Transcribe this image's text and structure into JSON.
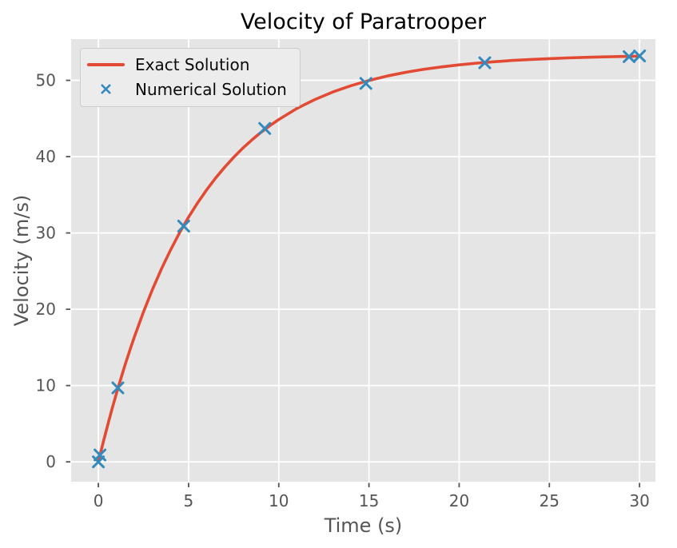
{
  "chart_data": {
    "type": "line+scatter",
    "title": "Velocity of Paratrooper",
    "xlabel": "Time (s)",
    "ylabel": "Velocity (m/s)",
    "xlim": [
      -1.51,
      30.88
    ],
    "ylim": [
      -2.6,
      55.4
    ],
    "xticks": [
      0,
      5,
      10,
      15,
      20,
      25,
      30
    ],
    "yticks": [
      0,
      10,
      20,
      30,
      40,
      50
    ],
    "grid": true,
    "legend_position": "upper left",
    "series": [
      {
        "name": "Exact Solution",
        "type": "line",
        "color": "#E24A33",
        "line_width": 3.6,
        "x": [
          0,
          0.25,
          0.5,
          0.75,
          1,
          1.25,
          1.5,
          1.75,
          2,
          2.5,
          3,
          3.5,
          4,
          4.5,
          5,
          5.5,
          6,
          6.5,
          7,
          7.5,
          8,
          8.5,
          9,
          9.5,
          10,
          11,
          12,
          13,
          14,
          15,
          16,
          17,
          18,
          19,
          20,
          21,
          22,
          23,
          24,
          25,
          26,
          27,
          28,
          29,
          30
        ],
        "y": [
          0,
          2.39,
          4.68,
          6.87,
          8.95,
          10.94,
          12.85,
          14.67,
          16.4,
          19.65,
          22.61,
          25.31,
          27.77,
          30.02,
          32.07,
          33.94,
          35.64,
          37.2,
          38.62,
          39.91,
          41.1,
          42.17,
          43.16,
          44.05,
          44.87,
          46.3,
          47.49,
          48.48,
          49.3,
          49.99,
          50.56,
          51.03,
          51.43,
          51.76,
          52.03,
          52.26,
          52.45,
          52.61,
          52.74,
          52.85,
          52.94,
          53.01,
          53.08,
          53.13,
          53.17
        ]
      },
      {
        "name": "Numerical Solution",
        "type": "scatter",
        "marker": "x",
        "color": "#348ABD",
        "marker_size": 13,
        "x": [
          0,
          0.09,
          1.08,
          4.73,
          9.22,
          14.83,
          21.42,
          29.42,
          30
        ],
        "y": [
          0,
          0.9,
          9.7,
          30.9,
          43.7,
          49.6,
          52.3,
          53.1,
          53.2
        ]
      }
    ],
    "colors": {
      "figure_background": "#ffffff",
      "axes_background": "#e5e5e5",
      "grid": "#ffffff",
      "tick": "#555555",
      "tick_label": "#555555",
      "axis_label": "#555555",
      "title": "#000000",
      "legend_background": "#ececec",
      "legend_border": "#cccccc",
      "legend_text": "#0a0a0a"
    }
  }
}
